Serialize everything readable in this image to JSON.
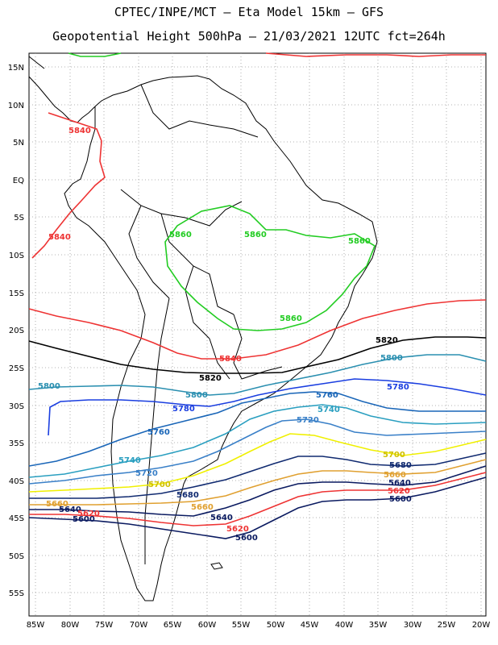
{
  "header": {
    "line1": "CPTEC/INPE/MCT –  Eta Model 15km – GFS",
    "line2": "Geopotential Height 500hPa – 21/03/2021 12UTC fct=264h"
  },
  "map": {
    "lat_labels": [
      "15N",
      "10N",
      "5N",
      "EQ",
      "5S",
      "10S",
      "15S",
      "20S",
      "25S",
      "30S",
      "35S",
      "40S",
      "45S",
      "50S",
      "55S"
    ],
    "lon_labels": [
      "85W",
      "80W",
      "75W",
      "70W",
      "65W",
      "60W",
      "55W",
      "50W",
      "45W",
      "40W",
      "35W",
      "30W",
      "25W",
      "20W"
    ],
    "lat_range": [
      "16N",
      "58S"
    ],
    "lon_range": [
      "86W",
      "19.5W"
    ],
    "grid": true
  },
  "contours": [
    {
      "level": "5860",
      "color": "#22cc22",
      "labels": [
        "5860",
        "5860",
        "5860",
        "5860"
      ]
    },
    {
      "level": "5840",
      "color": "#ee3333",
      "labels": [
        "5840",
        "5840",
        "5840"
      ]
    },
    {
      "level": "5820",
      "color": "#000000",
      "labels": [
        "5820",
        "5820"
      ]
    },
    {
      "level": "5800",
      "color": "#2a8fb0",
      "labels": [
        "5800",
        "5800",
        "5800"
      ]
    },
    {
      "level": "5780",
      "color": "#1a3ee0",
      "labels": [
        "5780",
        "5780"
      ]
    },
    {
      "level": "5760",
      "color": "#1a66b8",
      "labels": [
        "5760",
        "5760"
      ]
    },
    {
      "level": "5740",
      "color": "#2a9fc0",
      "labels": [
        "5740",
        "5740"
      ]
    },
    {
      "level": "5720",
      "color": "#3a80c8",
      "labels": [
        "5720",
        "5720"
      ]
    },
    {
      "level": "5700",
      "color": "#f0f000",
      "labels": [
        "5700",
        "5700"
      ]
    },
    {
      "level": "5680",
      "color": "#102a70",
      "labels": [
        "5680",
        "5680"
      ]
    },
    {
      "level": "5660",
      "color": "#e0a030",
      "labels": [
        "5660",
        "5660",
        "5660"
      ]
    },
    {
      "level": "5640",
      "color": "#0a1a60",
      "labels": [
        "5640",
        "5640",
        "5640"
      ]
    },
    {
      "level": "5620",
      "color": "#ee3333",
      "labels": [
        "5620",
        "5620",
        "5620"
      ]
    },
    {
      "level": "5600",
      "color": "#0a1a60",
      "labels": [
        "5600",
        "5600",
        "5600"
      ]
    }
  ]
}
